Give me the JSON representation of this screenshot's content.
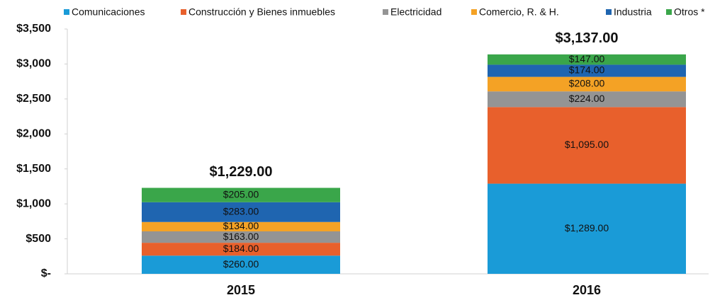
{
  "chart_data": {
    "type": "stacked_bar",
    "categories": [
      "2015",
      "2016"
    ],
    "series": [
      {
        "name": "Comunicaciones",
        "color": "#1a9bd7",
        "values": [
          260,
          1289
        ],
        "value_labels": [
          "$260.00",
          "$1,289.00"
        ]
      },
      {
        "name": "Construcción y Bienes inmuebles",
        "color": "#e8602c",
        "values": [
          184,
          1095
        ],
        "value_labels": [
          "$184.00",
          "$1,095.00"
        ]
      },
      {
        "name": "Electricidad",
        "color": "#949494",
        "values": [
          163,
          224
        ],
        "value_labels": [
          "$163.00",
          "$224.00"
        ]
      },
      {
        "name": "Comercio, R. & H.",
        "color": "#f4a225",
        "values": [
          134,
          208
        ],
        "value_labels": [
          "$134.00",
          "$208.00"
        ]
      },
      {
        "name": "Industria",
        "color": "#1f65b0",
        "values": [
          283,
          174
        ],
        "value_labels": [
          "$283.00",
          "$174.00"
        ]
      },
      {
        "name": "Otros *",
        "color": "#3aa64a",
        "values": [
          205,
          147
        ],
        "value_labels": [
          "$205.00",
          "$147.00"
        ]
      }
    ],
    "totals": [
      1229,
      3137
    ],
    "total_labels": [
      "$1,229.00",
      "$3,137.00"
    ],
    "ylim": [
      0,
      3500
    ],
    "yticks": [
      {
        "value": 0,
        "label": "$-"
      },
      {
        "value": 500,
        "label": "$500"
      },
      {
        "value": 1000,
        "label": "$1,000"
      },
      {
        "value": 1500,
        "label": "$1,500"
      },
      {
        "value": 2000,
        "label": "$2,000"
      },
      {
        "value": 2500,
        "label": "$2,500"
      },
      {
        "value": 3000,
        "label": "$3,000"
      },
      {
        "value": 3500,
        "label": "$3,500"
      }
    ],
    "legend": "top"
  }
}
